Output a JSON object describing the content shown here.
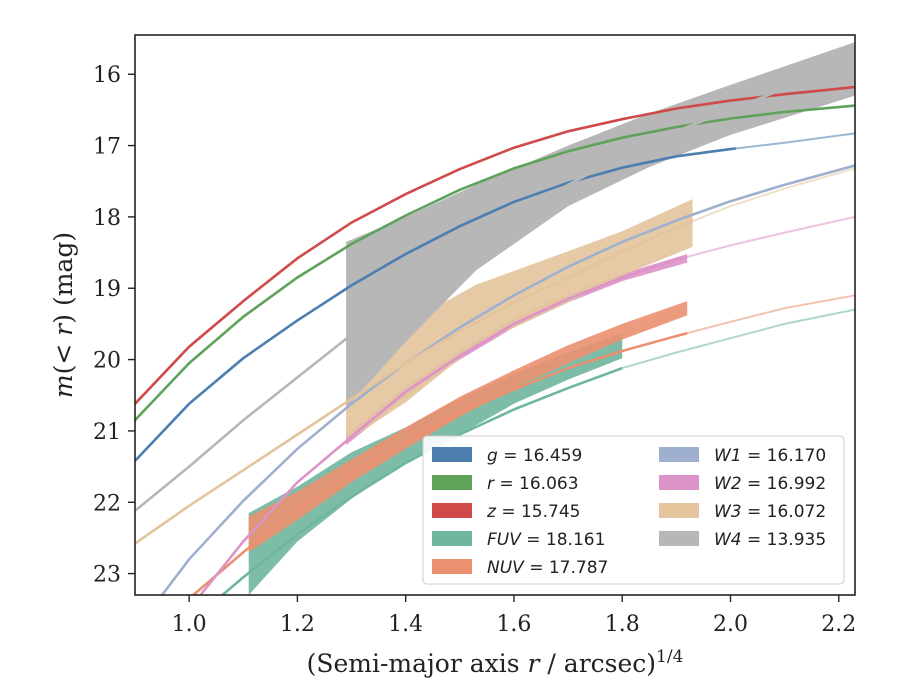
{
  "chart_data": {
    "type": "area",
    "xlabel": "(Semi-major axis r / arcsec)^1/4",
    "ylabel": "m(< r) (mag)",
    "xlim": [
      0.9,
      2.23
    ],
    "ylim": [
      23.3,
      15.45
    ],
    "y_inverted": true,
    "xticks": [
      "1.0",
      "1.2",
      "1.4",
      "1.6",
      "1.8",
      "2.0",
      "2.2"
    ],
    "yticks": [
      "16",
      "17",
      "18",
      "19",
      "20",
      "21",
      "22",
      "23"
    ],
    "grid": false,
    "legend_position": "bottom-right",
    "series": [
      {
        "key": "g",
        "label": "g = 16.459",
        "legend_var": "g",
        "legend_value": "= 16.459",
        "color": "#4c7fb0",
        "curve": [
          [
            0.9,
            21.42
          ],
          [
            1.0,
            20.62
          ],
          [
            1.1,
            19.98
          ],
          [
            1.2,
            19.45
          ],
          [
            1.3,
            18.96
          ],
          [
            1.4,
            18.52
          ],
          [
            1.5,
            18.13
          ],
          [
            1.6,
            17.79
          ],
          [
            1.7,
            17.52
          ],
          [
            1.8,
            17.31
          ],
          [
            1.9,
            17.15
          ],
          [
            2.0,
            17.05
          ],
          [
            2.1,
            16.96
          ],
          [
            2.23,
            16.83
          ]
        ],
        "band_upper": [],
        "band_lower": [],
        "fit_x": 2.01
      },
      {
        "key": "r",
        "label": "r = 16.063",
        "legend_var": "r",
        "legend_value": "= 16.063",
        "color": "#5fa35a",
        "curve": [
          [
            0.9,
            20.85
          ],
          [
            1.0,
            20.05
          ],
          [
            1.1,
            19.4
          ],
          [
            1.2,
            18.85
          ],
          [
            1.3,
            18.38
          ],
          [
            1.4,
            17.98
          ],
          [
            1.5,
            17.62
          ],
          [
            1.6,
            17.32
          ],
          [
            1.7,
            17.08
          ],
          [
            1.8,
            16.89
          ],
          [
            1.9,
            16.74
          ],
          [
            2.0,
            16.62
          ],
          [
            2.1,
            16.53
          ],
          [
            2.23,
            16.44
          ]
        ],
        "band_upper": [],
        "band_lower": [],
        "fit_x": 2.23
      },
      {
        "key": "z",
        "label": "z = 15.745",
        "legend_var": "z",
        "legend_value": "= 15.745",
        "color": "#d04a4a",
        "curve": [
          [
            0.9,
            20.62
          ],
          [
            1.0,
            19.82
          ],
          [
            1.1,
            19.18
          ],
          [
            1.2,
            18.58
          ],
          [
            1.3,
            18.08
          ],
          [
            1.4,
            17.68
          ],
          [
            1.5,
            17.33
          ],
          [
            1.6,
            17.03
          ],
          [
            1.7,
            16.8
          ],
          [
            1.8,
            16.63
          ],
          [
            1.9,
            16.48
          ],
          [
            2.0,
            16.37
          ],
          [
            2.1,
            16.28
          ],
          [
            2.23,
            16.18
          ]
        ],
        "band_upper": [],
        "band_lower": [],
        "fit_x": 2.23
      },
      {
        "key": "FUV",
        "label": "FUV = 18.161",
        "legend_var": "FUV",
        "legend_value": "= 18.161",
        "color": "#6fb69e",
        "curve": [
          [
            1.0,
            23.7
          ],
          [
            1.1,
            23.05
          ],
          [
            1.2,
            22.45
          ],
          [
            1.3,
            21.92
          ],
          [
            1.4,
            21.45
          ],
          [
            1.5,
            21.05
          ],
          [
            1.6,
            20.7
          ],
          [
            1.7,
            20.4
          ],
          [
            1.8,
            20.12
          ],
          [
            1.9,
            19.9
          ],
          [
            2.0,
            19.7
          ],
          [
            2.1,
            19.5
          ],
          [
            2.23,
            19.3
          ]
        ],
        "band_upper": [
          [
            1.11,
            22.15
          ],
          [
            1.2,
            21.78
          ],
          [
            1.3,
            21.3
          ],
          [
            1.4,
            20.95
          ],
          [
            1.5,
            20.55
          ],
          [
            1.6,
            20.2
          ],
          [
            1.7,
            19.9
          ],
          [
            1.8,
            19.63
          ]
        ],
        "band_lower": [
          [
            1.11,
            23.3
          ],
          [
            1.2,
            22.55
          ],
          [
            1.3,
            21.95
          ],
          [
            1.4,
            21.45
          ],
          [
            1.5,
            21.05
          ],
          [
            1.6,
            20.62
          ],
          [
            1.7,
            20.28
          ],
          [
            1.8,
            19.98
          ]
        ],
        "fit_x": 1.8
      },
      {
        "key": "NUV",
        "label": "NUV = 17.787",
        "legend_var": "NUV",
        "legend_value": "= 17.787",
        "color": "#eb9070",
        "curve": [
          [
            1.0,
            23.35
          ],
          [
            1.1,
            22.7
          ],
          [
            1.2,
            22.1
          ],
          [
            1.3,
            21.6
          ],
          [
            1.4,
            21.15
          ],
          [
            1.5,
            20.75
          ],
          [
            1.6,
            20.42
          ],
          [
            1.7,
            20.12
          ],
          [
            1.8,
            19.88
          ],
          [
            1.9,
            19.67
          ],
          [
            2.0,
            19.47
          ],
          [
            2.1,
            19.28
          ],
          [
            2.23,
            19.1
          ]
        ],
        "band_upper": [
          [
            1.11,
            22.2
          ],
          [
            1.2,
            21.85
          ],
          [
            1.3,
            21.4
          ],
          [
            1.4,
            20.95
          ],
          [
            1.5,
            20.52
          ],
          [
            1.6,
            20.15
          ],
          [
            1.7,
            19.8
          ],
          [
            1.8,
            19.5
          ],
          [
            1.92,
            19.18
          ]
        ],
        "band_lower": [
          [
            1.11,
            22.7
          ],
          [
            1.2,
            22.25
          ],
          [
            1.3,
            21.72
          ],
          [
            1.4,
            21.25
          ],
          [
            1.5,
            20.8
          ],
          [
            1.6,
            20.4
          ],
          [
            1.7,
            20.05
          ],
          [
            1.8,
            19.72
          ],
          [
            1.92,
            19.38
          ]
        ],
        "fit_x": 1.92
      },
      {
        "key": "W1",
        "label": "W1 = 16.170",
        "legend_var": "W1",
        "legend_value": "= 16.170",
        "color": "#9fb0cf",
        "curve": [
          [
            0.9,
            23.8
          ],
          [
            1.0,
            22.8
          ],
          [
            1.1,
            21.98
          ],
          [
            1.2,
            21.25
          ],
          [
            1.3,
            20.62
          ],
          [
            1.4,
            20.05
          ],
          [
            1.5,
            19.55
          ],
          [
            1.6,
            19.1
          ],
          [
            1.7,
            18.7
          ],
          [
            1.8,
            18.35
          ],
          [
            1.9,
            18.05
          ],
          [
            2.0,
            17.78
          ],
          [
            2.1,
            17.55
          ],
          [
            2.23,
            17.28
          ]
        ],
        "band_upper": [],
        "band_lower": [],
        "fit_x": 2.23
      },
      {
        "key": "W2",
        "label": "W2 = 16.992",
        "legend_var": "W2",
        "legend_value": "= 16.992",
        "color": "#dc93c8",
        "curve": [
          [
            1.0,
            23.5
          ],
          [
            1.1,
            22.55
          ],
          [
            1.2,
            21.72
          ],
          [
            1.3,
            21.08
          ],
          [
            1.4,
            20.45
          ],
          [
            1.5,
            19.95
          ],
          [
            1.6,
            19.5
          ],
          [
            1.7,
            19.15
          ],
          [
            1.8,
            18.85
          ],
          [
            1.9,
            18.6
          ],
          [
            2.0,
            18.4
          ],
          [
            2.1,
            18.22
          ],
          [
            2.23,
            18.0
          ]
        ],
        "band_upper": [
          [
            1.29,
            21.05
          ],
          [
            1.4,
            20.38
          ],
          [
            1.5,
            19.88
          ],
          [
            1.6,
            19.42
          ],
          [
            1.7,
            19.08
          ],
          [
            1.8,
            18.8
          ],
          [
            1.92,
            18.52
          ]
        ],
        "band_lower": [
          [
            1.29,
            21.2
          ],
          [
            1.4,
            20.52
          ],
          [
            1.5,
            20.0
          ],
          [
            1.6,
            19.55
          ],
          [
            1.7,
            19.2
          ],
          [
            1.8,
            18.9
          ],
          [
            1.92,
            18.64
          ]
        ],
        "fit_x": 1.92
      },
      {
        "key": "W3",
        "label": "W3 = 16.072",
        "legend_var": "W3",
        "legend_value": "= 16.072",
        "color": "#e3c49c",
        "curve": [
          [
            0.9,
            22.58
          ],
          [
            1.0,
            22.05
          ],
          [
            1.1,
            21.55
          ],
          [
            1.2,
            21.05
          ],
          [
            1.3,
            20.55
          ],
          [
            1.4,
            20.05
          ],
          [
            1.5,
            19.6
          ],
          [
            1.6,
            19.2
          ],
          [
            1.7,
            18.85
          ],
          [
            1.8,
            18.48
          ],
          [
            1.9,
            18.15
          ],
          [
            2.0,
            17.85
          ],
          [
            2.1,
            17.6
          ],
          [
            2.23,
            17.32
          ]
        ],
        "band_upper": [
          [
            1.29,
            19.88
          ],
          [
            1.4,
            19.5
          ],
          [
            1.53,
            18.95
          ],
          [
            1.7,
            18.48
          ],
          [
            1.8,
            18.2
          ],
          [
            1.93,
            17.75
          ]
        ],
        "band_lower": [
          [
            1.29,
            21.15
          ],
          [
            1.4,
            20.6
          ],
          [
            1.53,
            19.8
          ],
          [
            1.7,
            19.2
          ],
          [
            1.8,
            18.82
          ],
          [
            1.93,
            18.42
          ]
        ],
        "fit_x": 1.93
      },
      {
        "key": "W4",
        "label": "W4 = 13.935",
        "legend_var": "W4",
        "legend_value": "= 13.935",
        "color": "#b7b7b7",
        "curve": [
          [
            0.9,
            22.12
          ],
          [
            1.0,
            21.5
          ],
          [
            1.1,
            20.85
          ],
          [
            1.2,
            20.25
          ],
          [
            1.3,
            19.65
          ],
          [
            1.4,
            19.05
          ],
          [
            1.5,
            18.5
          ],
          [
            1.6,
            18.0
          ],
          [
            1.7,
            17.55
          ],
          [
            1.8,
            17.15
          ],
          [
            1.9,
            16.8
          ],
          [
            2.0,
            16.5
          ],
          [
            2.1,
            16.2
          ],
          [
            2.23,
            15.88
          ]
        ],
        "band_upper": [
          [
            1.29,
            18.35
          ],
          [
            1.4,
            18.0
          ],
          [
            1.53,
            17.55
          ],
          [
            1.7,
            17.0
          ],
          [
            1.85,
            16.55
          ],
          [
            2.0,
            16.15
          ],
          [
            2.23,
            15.55
          ]
        ],
        "band_lower": [
          [
            1.29,
            20.68
          ],
          [
            1.4,
            19.75
          ],
          [
            1.53,
            18.75
          ],
          [
            1.7,
            17.85
          ],
          [
            1.85,
            17.3
          ],
          [
            2.0,
            16.85
          ],
          [
            2.23,
            16.3
          ]
        ],
        "fit_x": 2.23
      }
    ]
  }
}
